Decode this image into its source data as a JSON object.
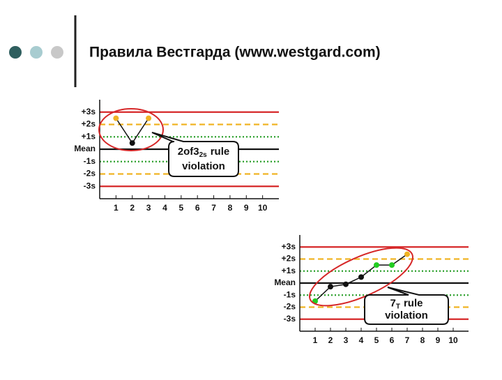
{
  "slide_title": "Правила Вестгарда (www.westgard.com)",
  "chart_data": [
    {
      "type": "line",
      "xlim": [
        0,
        11
      ],
      "xticks": [
        1,
        2,
        3,
        4,
        5,
        6,
        7,
        8,
        9,
        10
      ],
      "ylim": [
        -4,
        4
      ],
      "yticks": [
        {
          "value": 3,
          "label": "+3s"
        },
        {
          "value": 2,
          "label": "+2s"
        },
        {
          "value": 1,
          "label": "+1s"
        },
        {
          "value": 0,
          "label": "Mean"
        },
        {
          "value": -1,
          "label": "-1s"
        },
        {
          "value": -2,
          "label": "-2s"
        },
        {
          "value": -3,
          "label": "-3s"
        }
      ],
      "grid": true,
      "grid_colors": [
        "#d62728",
        "#f0b323",
        "#2ca02c",
        "#111111",
        "#2ca02c",
        "#f0b323",
        "#d62728"
      ],
      "grid_styles": [
        "solid",
        "dashed",
        "dotted",
        "solid",
        "dotted",
        "dashed",
        "solid"
      ],
      "series": [
        {
          "color": "#111111",
          "x": [
            1,
            2,
            3
          ],
          "values": [
            2.5,
            0.5,
            2.5
          ],
          "point_colors": [
            "#f0b323",
            "#111111",
            "#f0b323"
          ]
        }
      ],
      "annotation": {
        "main": "2of3",
        "sub": "2s",
        "rest": "rule",
        "line2": "violation"
      }
    },
    {
      "type": "line",
      "xlim": [
        0,
        11
      ],
      "xticks": [
        1,
        2,
        3,
        4,
        5,
        6,
        7,
        8,
        9,
        10
      ],
      "ylim": [
        -4,
        4
      ],
      "yticks": [
        {
          "value": 3,
          "label": "+3s"
        },
        {
          "value": 2,
          "label": "+2s"
        },
        {
          "value": 1,
          "label": "+1s"
        },
        {
          "value": 0,
          "label": "Mean"
        },
        {
          "value": -1,
          "label": "-1s"
        },
        {
          "value": -2,
          "label": "-2s"
        },
        {
          "value": -3,
          "label": "-3s"
        }
      ],
      "grid": true,
      "grid_colors": [
        "#d62728",
        "#f0b323",
        "#2ca02c",
        "#111111",
        "#2ca02c",
        "#f0b323",
        "#d62728"
      ],
      "grid_styles": [
        "solid",
        "dashed",
        "dotted",
        "solid",
        "dotted",
        "dashed",
        "solid"
      ],
      "series": [
        {
          "color": "#111111",
          "x": [
            1,
            2,
            3,
            4,
            5,
            6,
            7
          ],
          "values": [
            -1.5,
            -0.3,
            -0.1,
            0.5,
            1.5,
            1.5,
            2.4
          ],
          "point_colors": [
            "#22cc22",
            "#111111",
            "#111111",
            "#111111",
            "#22cc22",
            "#22cc22",
            "#f0b323"
          ]
        }
      ],
      "annotation": {
        "main": "7",
        "sub": "T",
        "rest": "rule",
        "line2": "violation"
      }
    }
  ]
}
